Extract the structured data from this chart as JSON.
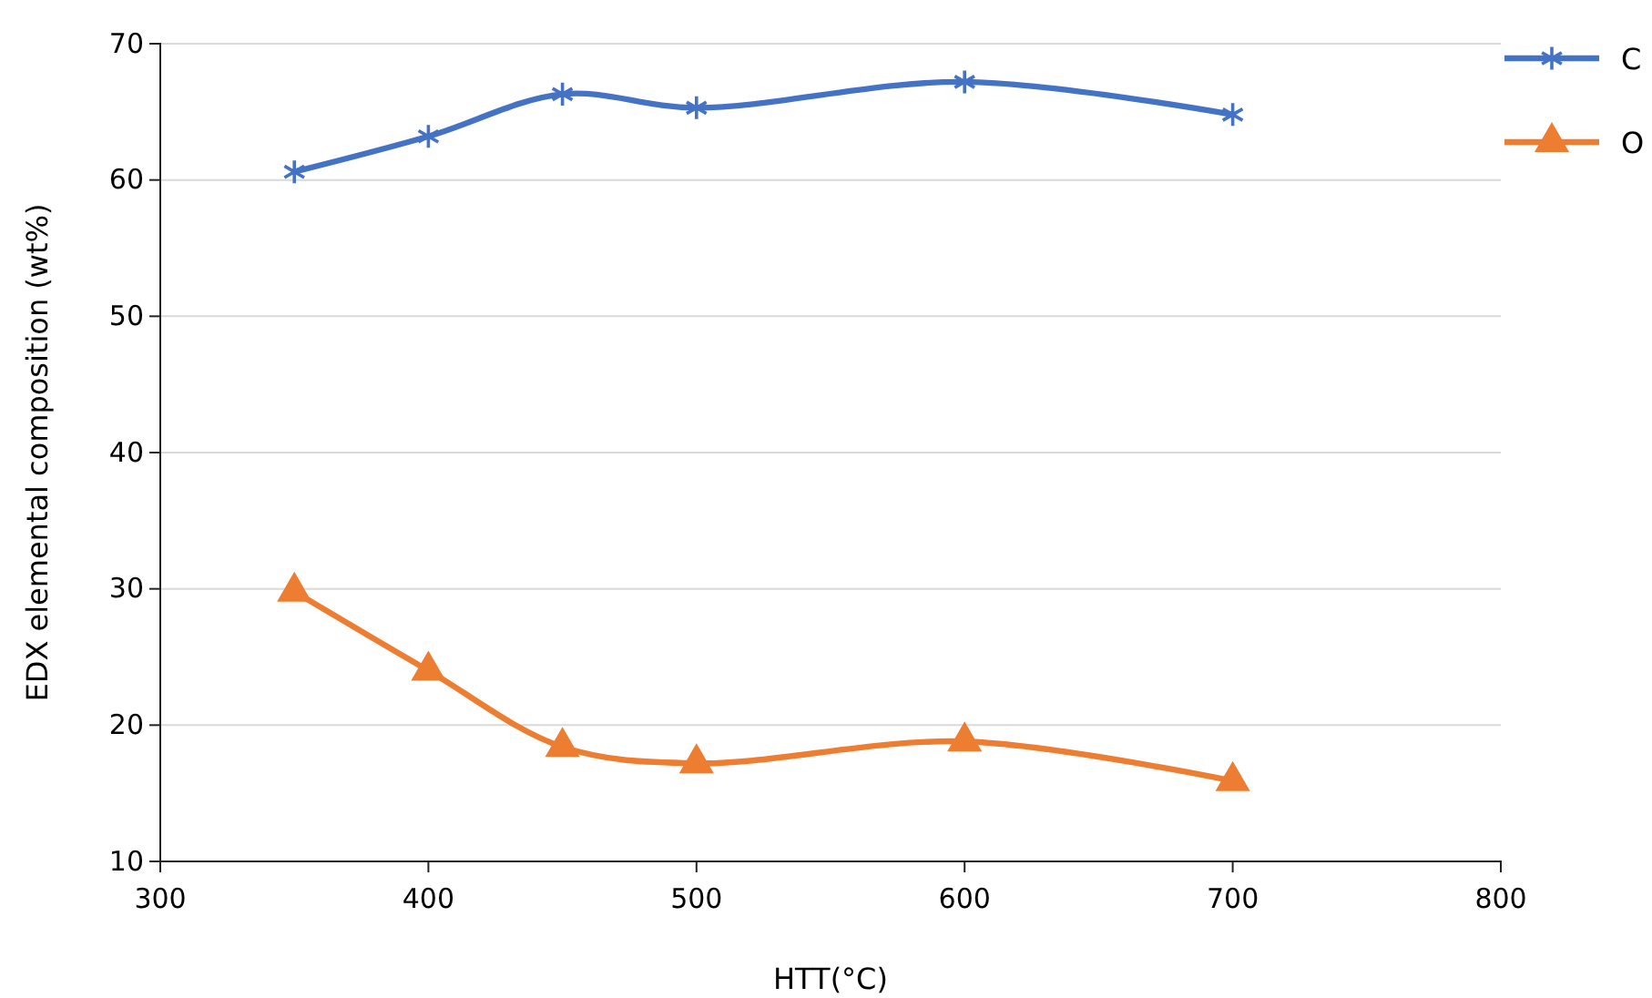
{
  "chart_data": {
    "type": "line",
    "xlabel": "HTT(°C)",
    "ylabel": "EDX elemental composition (wt%)",
    "x": [
      350,
      400,
      450,
      500,
      600,
      700
    ],
    "series": [
      {
        "name": "C",
        "color": "#4472c4",
        "marker": "cross",
        "values": [
          60.6,
          63.2,
          66.3,
          65.3,
          67.2,
          64.8
        ]
      },
      {
        "name": "O",
        "color": "#ed7d31",
        "marker": "triangle",
        "values": [
          29.8,
          24.0,
          18.4,
          17.2,
          18.8,
          15.9
        ]
      }
    ],
    "xlim": [
      300,
      800
    ],
    "xticks": [
      300,
      400,
      500,
      600,
      700,
      800
    ],
    "ylim": [
      10,
      70
    ],
    "yticks": [
      10,
      20,
      30,
      40,
      50,
      60,
      70
    ],
    "grid": "y",
    "legend": "top right",
    "line_style": "solid"
  }
}
